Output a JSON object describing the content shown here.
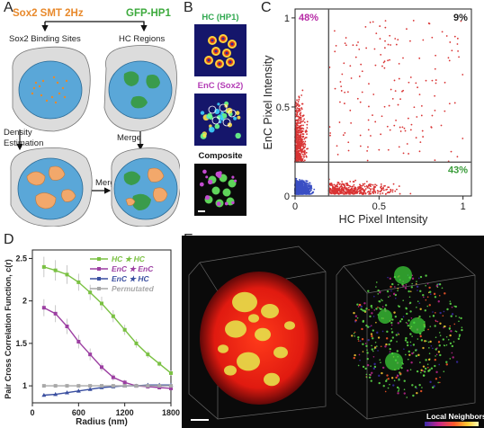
{
  "panels": {
    "A": "A",
    "B": "B",
    "C": "C",
    "D": "D",
    "E": "E"
  },
  "panelA": {
    "title_sox2": "Sox2 SMT 2Hz",
    "title_gfp": "GFP-HP1",
    "binding_sites": "Sox2 Binding Sites",
    "hc_regions": "HC Regions",
    "density_estimation": "Density\nEstimation",
    "merge_left": "Merge",
    "merge_right": "Merge",
    "colors": {
      "orange": "#e8892b",
      "green": "#3daa3d",
      "cell": "#dcdcdc",
      "nucleus": "#5aa7d8"
    }
  },
  "panelB": {
    "hc_label": "HC (HP1)",
    "enc_label": "EnC (Sox2)",
    "composite_label": "Composite",
    "colors": {
      "hc": "#2fa84f",
      "enc": "#b43db6",
      "composite": "#111111"
    }
  },
  "chart_data": [
    {
      "type": "scatter",
      "panel": "C",
      "xlabel": "HC Pixel Intensity",
      "ylabel": "EnC Pixel Intensity",
      "xlim": [
        0,
        1.05
      ],
      "ylim": [
        0,
        1.05
      ],
      "xticks": [
        "0",
        "0.5",
        "1"
      ],
      "yticks": [
        "0",
        "0.5",
        "1"
      ],
      "thresholds": {
        "x": 0.2,
        "y": 0.19
      },
      "annotations": [
        {
          "text": "48%",
          "color": "#b72ba6"
        },
        {
          "text": "9%",
          "color": "#222222"
        },
        {
          "text": "43%",
          "color": "#3a9c3a"
        }
      ],
      "series": [
        {
          "color": "#d93434"
        },
        {
          "color": "#3a4fc4"
        }
      ]
    },
    {
      "type": "line",
      "panel": "D",
      "xlabel": "Radius (nm)",
      "ylabel": "Pair Cross Correlation Function, c(r)",
      "xlim": [
        0,
        1800
      ],
      "ylim": [
        0.8,
        2.6
      ],
      "xticks": [
        "0",
        "600",
        "1200",
        "1800"
      ],
      "yticks": [
        "1",
        "1.5",
        "2",
        "2.5"
      ],
      "x": [
        150,
        300,
        450,
        600,
        750,
        900,
        1050,
        1200,
        1350,
        1500,
        1650,
        1800
      ],
      "series": [
        {
          "name": "HC ★ HC",
          "color": "#7ac142",
          "values": [
            2.4,
            2.36,
            2.31,
            2.22,
            2.1,
            1.97,
            1.82,
            1.66,
            1.5,
            1.37,
            1.26,
            1.15
          ],
          "err": [
            0.12,
            0.12,
            0.11,
            0.1,
            0.09,
            0.08,
            0.07,
            0.06,
            0.05,
            0.04,
            0.03,
            0.03
          ]
        },
        {
          "name": "EnC ★ EnC",
          "color": "#9c3fa2",
          "values": [
            1.92,
            1.85,
            1.7,
            1.52,
            1.37,
            1.22,
            1.1,
            1.04,
            1.0,
            0.99,
            0.98,
            0.97
          ],
          "err": [
            0.1,
            0.1,
            0.09,
            0.08,
            0.07,
            0.05,
            0.04,
            0.03,
            0.02,
            0.02,
            0.02,
            0.02
          ]
        },
        {
          "name": "EnC ★ HC",
          "color": "#3a4fa0",
          "values": [
            0.89,
            0.9,
            0.92,
            0.94,
            0.96,
            0.98,
            0.99,
            1.0,
            1.0,
            1.01,
            1.01,
            1.01
          ],
          "err": [
            0.02,
            0.02,
            0.02,
            0.02,
            0.02,
            0.02,
            0.02,
            0.02,
            0.02,
            0.02,
            0.02,
            0.02
          ]
        },
        {
          "name": "Permutated",
          "color": "#a8a8a8",
          "values": [
            1.0,
            1.0,
            1.0,
            1.0,
            1.0,
            1.0,
            1.0,
            1.0,
            1.0,
            1.0,
            1.0,
            1.0
          ],
          "err": [
            0.01,
            0.01,
            0.01,
            0.01,
            0.01,
            0.01,
            0.01,
            0.01,
            0.01,
            0.01,
            0.01,
            0.01
          ]
        }
      ]
    }
  ],
  "panelE": {
    "local_neighbors": "Local Neighbors"
  }
}
